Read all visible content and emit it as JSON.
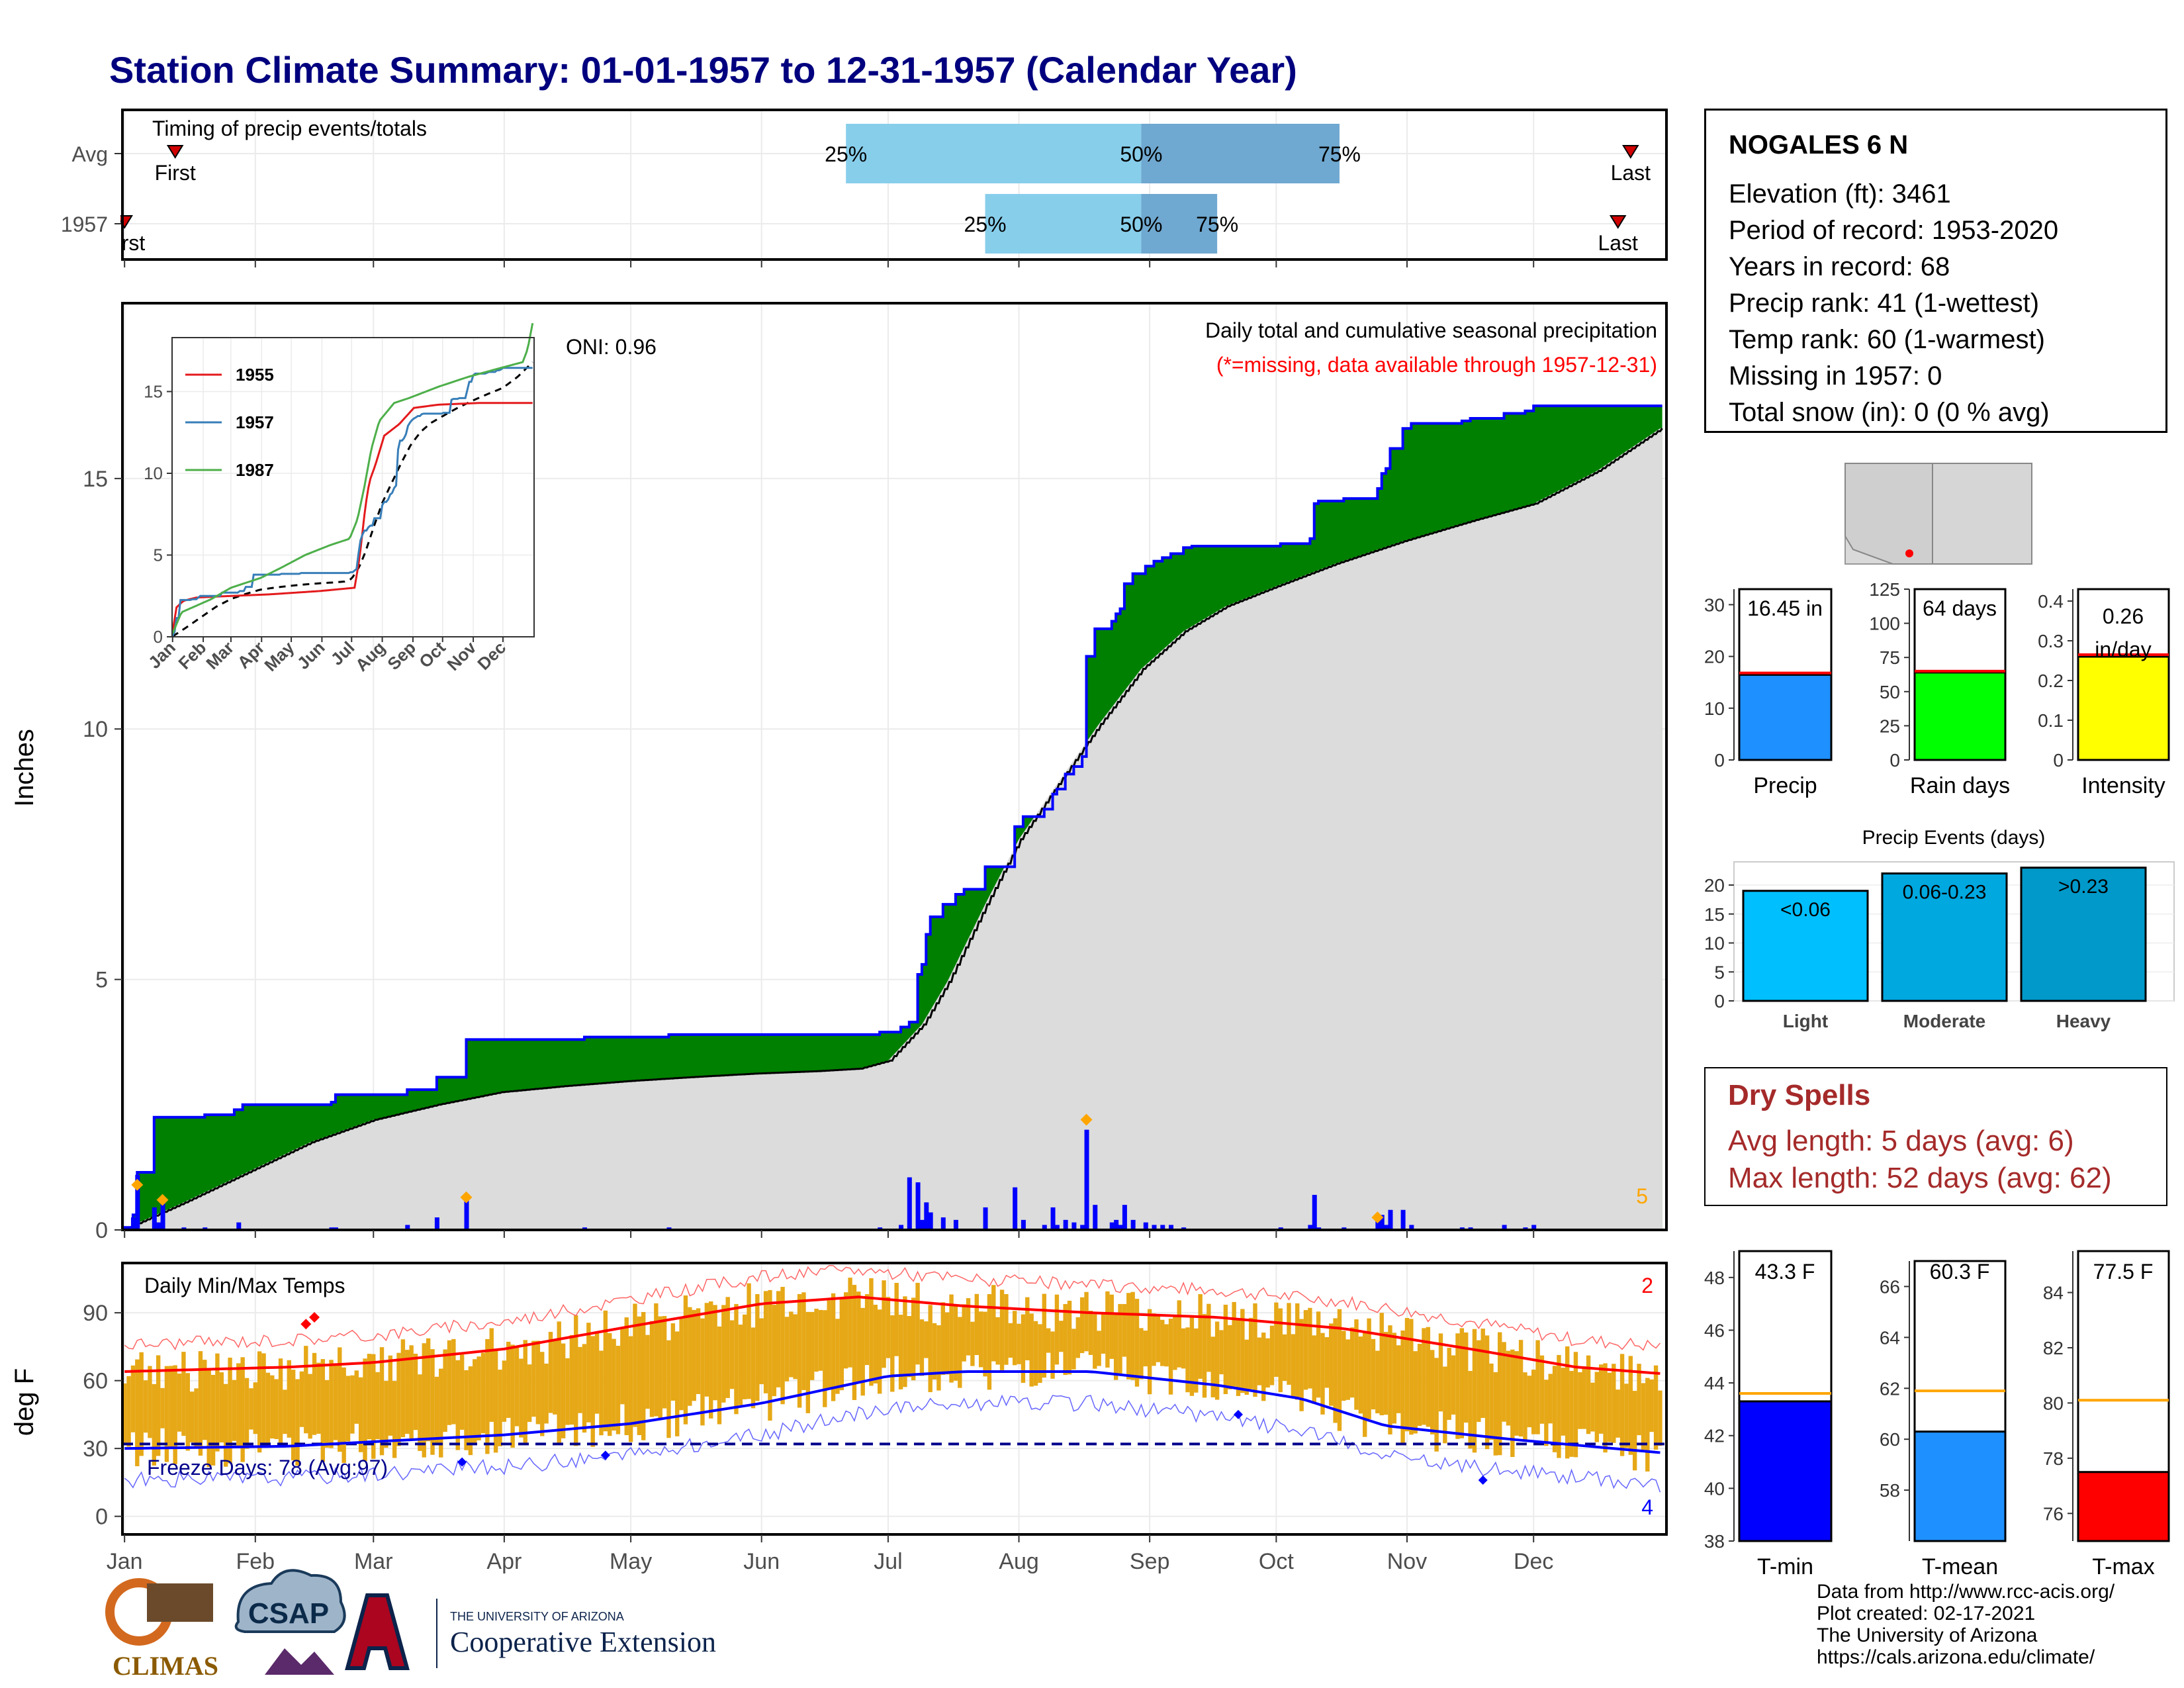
{
  "title": "Station Climate Summary: 01-01-1957 to 12-31-1957 (Calendar Year)",
  "station": {
    "name": "NOGALES 6 N",
    "lines": [
      "Elevation (ft): 3461",
      "Period of record: 1953-2020",
      "Years in record: 68",
      "Precip rank: 41 (1-wettest)",
      "Temp rank: 60 (1-warmest)",
      "Missing in 1957: 0",
      "Total snow (in): 0 (0 % avg)"
    ]
  },
  "dry_spells": {
    "title": "Dry Spells",
    "avg_length": "Avg length: 5 days (avg: 6)",
    "max_length": "Max length: 52 days (avg: 62)"
  },
  "credits": {
    "line1": "Data from http://www.rcc-acis.org/",
    "line2": "Plot created: 02-17-2021",
    "line3": "The University of Arizona",
    "line4": "https://cals.arizona.edu/climate/"
  },
  "logos": {
    "climas": "CLIMAS",
    "csap": "CSAP",
    "ua_small": "THE UNIVERSITY OF ARIZONA",
    "ua_big": "Cooperative Extension"
  },
  "colors": {
    "title": "#00007f",
    "green_fill": "#008000",
    "avg_fill": "#dcdcdc",
    "blue_line": "#0000ff",
    "gold_bars": "#e6a817",
    "light_blue": "#87ceeb",
    "mid_blue": "#6fa8d0",
    "dry_red": "#a52a2a"
  },
  "chart_data": [
    {
      "type": "bar",
      "name": "timing",
      "title": "Timing of precip events/totals",
      "rows": [
        {
          "label": "Avg",
          "first_label": "First",
          "last_label": "Last",
          "first": 13,
          "p25": 172,
          "p50": 242,
          "p75": 289,
          "last": 358
        },
        {
          "label": "1957",
          "first_label": "First",
          "last_label": "Last",
          "first": 1,
          "p25": 205,
          "p50": 242,
          "p75": 260,
          "last": 355
        }
      ],
      "pct_labels": [
        "25%",
        "50%",
        "75%"
      ]
    },
    {
      "type": "area",
      "name": "cumulative_precip",
      "title": "Daily total and cumulative seasonal precipitation",
      "subtitle": "(*=missing, data available through 1957-12-31)",
      "oni": "ONI: 0.96",
      "ylabel": "Inches",
      "ylim": [
        0,
        18.5
      ],
      "yticks": [
        0,
        5,
        10,
        15
      ],
      "count_label": "5",
      "months": [
        "Jan",
        "Feb",
        "Mar",
        "Apr",
        "May",
        "Jun",
        "Jul",
        "Aug",
        "Sep",
        "Oct",
        "Nov",
        "Dec"
      ],
      "cum_1957": [
        [
          1,
          0.05
        ],
        [
          3,
          0.3
        ],
        [
          4,
          1.15
        ],
        [
          8,
          2.25
        ],
        [
          20,
          2.3
        ],
        [
          27,
          2.4
        ],
        [
          29,
          2.5
        ],
        [
          50,
          2.55
        ],
        [
          51,
          2.7
        ],
        [
          68,
          2.8
        ],
        [
          75,
          3.05
        ],
        [
          82,
          3.8
        ],
        [
          110,
          3.85
        ],
        [
          130,
          3.9
        ],
        [
          180,
          3.95
        ],
        [
          185,
          4.05
        ],
        [
          187,
          4.15
        ],
        [
          189,
          5.1
        ],
        [
          190,
          5.3
        ],
        [
          191,
          5.9
        ],
        [
          192,
          6.25
        ],
        [
          195,
          6.5
        ],
        [
          198,
          6.7
        ],
        [
          200,
          6.8
        ],
        [
          205,
          7.25
        ],
        [
          212,
          8.05
        ],
        [
          214,
          8.25
        ],
        [
          219,
          8.4
        ],
        [
          221,
          8.7
        ],
        [
          222,
          8.8
        ],
        [
          224,
          9.1
        ],
        [
          226,
          9.25
        ],
        [
          228,
          9.45
        ],
        [
          229,
          11.45
        ],
        [
          231,
          12.0
        ],
        [
          235,
          12.15
        ],
        [
          236,
          12.3
        ],
        [
          237,
          12.4
        ],
        [
          238,
          12.9
        ],
        [
          240,
          13.1
        ],
        [
          243,
          13.25
        ],
        [
          245,
          13.35
        ],
        [
          247,
          13.42
        ],
        [
          249,
          13.5
        ],
        [
          252,
          13.62
        ],
        [
          254,
          13.65
        ],
        [
          275,
          13.7
        ],
        [
          282,
          13.8
        ],
        [
          283,
          14.5
        ],
        [
          284,
          14.55
        ],
        [
          290,
          14.6
        ],
        [
          298,
          14.8
        ],
        [
          299,
          15.1
        ],
        [
          300,
          15.2
        ],
        [
          301,
          15.6
        ],
        [
          304,
          16.0
        ],
        [
          306,
          16.1
        ],
        [
          318,
          16.15
        ],
        [
          320,
          16.2
        ],
        [
          328,
          16.3
        ],
        [
          333,
          16.35
        ],
        [
          335,
          16.45
        ],
        [
          365,
          16.45
        ]
      ],
      "avg_cum": [
        [
          1,
          0.02
        ],
        [
          15,
          0.55
        ],
        [
          30,
          1.15
        ],
        [
          45,
          1.75
        ],
        [
          60,
          2.2
        ],
        [
          75,
          2.5
        ],
        [
          90,
          2.75
        ],
        [
          105,
          2.87
        ],
        [
          120,
          2.97
        ],
        [
          135,
          3.05
        ],
        [
          150,
          3.12
        ],
        [
          165,
          3.17
        ],
        [
          175,
          3.22
        ],
        [
          182,
          3.38
        ],
        [
          190,
          4.1
        ],
        [
          196,
          4.95
        ],
        [
          205,
          6.5
        ],
        [
          213,
          7.8
        ],
        [
          222,
          8.9
        ],
        [
          232,
          10.1
        ],
        [
          242,
          11.2
        ],
        [
          252,
          11.95
        ],
        [
          262,
          12.45
        ],
        [
          274,
          12.85
        ],
        [
          288,
          13.3
        ],
        [
          304,
          13.75
        ],
        [
          320,
          14.15
        ],
        [
          335,
          14.5
        ],
        [
          350,
          15.15
        ],
        [
          365,
          16.0
        ]
      ],
      "daily": [
        [
          3,
          0.25
        ],
        [
          4,
          1.1
        ],
        [
          8,
          0.45
        ],
        [
          9,
          0.15
        ],
        [
          10,
          0.55
        ],
        [
          15,
          0.05
        ],
        [
          20,
          0.05
        ],
        [
          28,
          0.15
        ],
        [
          50,
          0.05
        ],
        [
          51,
          0.05
        ],
        [
          68,
          0.1
        ],
        [
          75,
          0.25
        ],
        [
          82,
          0.6
        ],
        [
          110,
          0.05
        ],
        [
          130,
          0.05
        ],
        [
          180,
          0.05
        ],
        [
          185,
          0.1
        ],
        [
          187,
          1.05
        ],
        [
          189,
          0.95
        ],
        [
          190,
          0.2
        ],
        [
          191,
          0.55
        ],
        [
          192,
          0.35
        ],
        [
          195,
          0.25
        ],
        [
          198,
          0.2
        ],
        [
          205,
          0.45
        ],
        [
          212,
          0.85
        ],
        [
          214,
          0.2
        ],
        [
          219,
          0.1
        ],
        [
          221,
          0.45
        ],
        [
          222,
          0.1
        ],
        [
          224,
          0.2
        ],
        [
          226,
          0.15
        ],
        [
          228,
          0.1
        ],
        [
          229,
          2.0
        ],
        [
          231,
          0.5
        ],
        [
          235,
          0.15
        ],
        [
          236,
          0.2
        ],
        [
          237,
          0.1
        ],
        [
          238,
          0.5
        ],
        [
          240,
          0.2
        ],
        [
          243,
          0.15
        ],
        [
          245,
          0.1
        ],
        [
          247,
          0.1
        ],
        [
          249,
          0.1
        ],
        [
          252,
          0.05
        ],
        [
          275,
          0.05
        ],
        [
          282,
          0.1
        ],
        [
          283,
          0.7
        ],
        [
          284,
          0.05
        ],
        [
          290,
          0.05
        ],
        [
          298,
          0.2
        ],
        [
          299,
          0.3
        ],
        [
          300,
          0.1
        ],
        [
          301,
          0.4
        ],
        [
          304,
          0.4
        ],
        [
          306,
          0.1
        ],
        [
          318,
          0.05
        ],
        [
          320,
          0.05
        ],
        [
          328,
          0.1
        ],
        [
          333,
          0.05
        ],
        [
          335,
          0.1
        ]
      ],
      "record_markers": [
        [
          4,
          0.9
        ],
        [
          10,
          0.6
        ],
        [
          82,
          0.65
        ],
        [
          229,
          2.2
        ],
        [
          298,
          0.25
        ]
      ]
    },
    {
      "type": "line",
      "name": "inset_cumulative",
      "series": [
        {
          "name": "1955"
        },
        {
          "name": "1957"
        },
        {
          "name": "1987"
        }
      ],
      "yticks": [
        0,
        5,
        10,
        15
      ],
      "months": [
        "Jan",
        "Feb",
        "Mar",
        "Apr",
        "May",
        "Jun",
        "Jul",
        "Aug",
        "Sep",
        "Oct",
        "Nov",
        "Dec"
      ]
    },
    {
      "type": "bar",
      "name": "daily_temps",
      "title": "Daily Min/Max Temps",
      "ylabel": "deg F",
      "ylim": [
        -8,
        112
      ],
      "yticks": [
        0,
        30,
        60,
        90
      ],
      "freeze_days": "Freeze Days: 78 (Avg:97)",
      "freeze_line": 32,
      "hot_count": "2",
      "cold_count": "4",
      "months": [
        "Jan",
        "Feb",
        "Mar",
        "Apr",
        "May",
        "Jun",
        "Jul",
        "Aug",
        "Sep",
        "Oct",
        "Nov",
        "Dec"
      ]
    },
    {
      "type": "bar",
      "name": "precip_total",
      "categories": [
        "Precip"
      ],
      "values": [
        16.45
      ],
      "avg": 16.8,
      "ylim": [
        0,
        33
      ],
      "yticks": [
        0,
        10,
        20,
        30
      ],
      "label": "16.45 in",
      "color": "#1e90ff"
    },
    {
      "type": "bar",
      "name": "rain_days",
      "categories": [
        "Rain days"
      ],
      "values": [
        64
      ],
      "avg": 65,
      "ylim": [
        0,
        125
      ],
      "yticks": [
        0,
        25,
        50,
        75,
        100,
        125
      ],
      "label": "64 days",
      "color": "#00ff00"
    },
    {
      "type": "bar",
      "name": "intensity",
      "categories": [
        "Intensity"
      ],
      "values": [
        0.26
      ],
      "avg": 0.265,
      "ylim": [
        0,
        0.43
      ],
      "yticks": [
        0.0,
        0.1,
        0.2,
        0.3,
        0.4
      ],
      "label_a": "0.26",
      "label_b": "in/day",
      "color": "#ffff00"
    },
    {
      "type": "bar",
      "name": "precip_events",
      "title": "Precip Events (days)",
      "categories": [
        "Light",
        "Moderate",
        "Heavy"
      ],
      "values": [
        19,
        22,
        23
      ],
      "bar_labels": [
        "<0.06",
        "0.06-0.23",
        ">0.23"
      ],
      "ylim": [
        0,
        24
      ],
      "yticks": [
        0,
        5,
        10,
        15,
        20
      ],
      "colors": [
        "#00bfff",
        "#00a8e0",
        "#0099c9"
      ]
    },
    {
      "type": "bar",
      "name": "tmin",
      "categories": [
        "T-min"
      ],
      "values": [
        43.3
      ],
      "avg": 43.6,
      "ylim": [
        38,
        49
      ],
      "yticks": [
        38,
        40,
        42,
        44,
        46,
        48
      ],
      "label": "43.3 F",
      "color": "#0000ff"
    },
    {
      "type": "bar",
      "name": "tmean",
      "categories": [
        "T-mean"
      ],
      "values": [
        60.3
      ],
      "avg": 61.9,
      "ylim": [
        56,
        67
      ],
      "yticks": [
        58,
        60,
        62,
        64,
        66
      ],
      "label": "60.3 F",
      "color": "#1e90ff"
    },
    {
      "type": "bar",
      "name": "tmax",
      "categories": [
        "T-max"
      ],
      "values": [
        77.5
      ],
      "avg": 80.1,
      "ylim": [
        75,
        85.5
      ],
      "yticks": [
        76,
        78,
        80,
        82,
        84
      ],
      "label": "77.5 F",
      "color": "#ff0000"
    }
  ]
}
